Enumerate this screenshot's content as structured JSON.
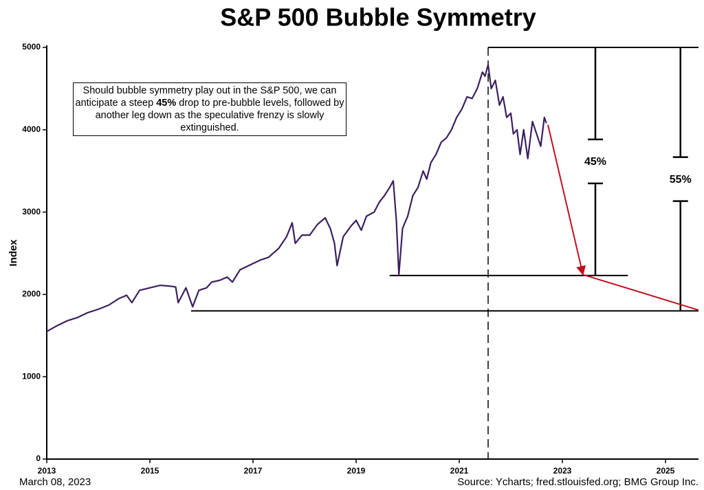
{
  "chart_data": {
    "type": "line",
    "title": "S&P 500 Bubble Symmetry",
    "y_label": "Index",
    "date_note": "March 08, 2023",
    "source": "Source: Ycharts; fred.stlouisfed.org; BMG Group Inc.",
    "color": "#3b1f5e",
    "x": [
      2013.0,
      2013.2,
      2013.4,
      2013.6,
      2013.8,
      2014.0,
      2014.2,
      2014.4,
      2014.55,
      2014.65,
      2014.8,
      2015.0,
      2015.2,
      2015.4,
      2015.5,
      2015.55,
      2015.7,
      2015.83,
      2015.95,
      2016.1,
      2016.2,
      2016.35,
      2016.5,
      2016.6,
      2016.75,
      2016.95,
      2017.15,
      2017.3,
      2017.5,
      2017.65,
      2017.76,
      2017.82,
      2017.95,
      2018.1,
      2018.25,
      2018.4,
      2018.5,
      2018.58,
      2018.63,
      2018.75,
      2018.9,
      2019.0,
      2019.1,
      2019.2,
      2019.35,
      2019.45,
      2019.55,
      2019.65,
      2019.72,
      2019.78,
      2019.83,
      2019.9,
      2020.0,
      2020.1,
      2020.2,
      2020.3,
      2020.37,
      2020.45,
      2020.55,
      2020.65,
      2020.75,
      2020.85,
      2020.95,
      2021.05,
      2021.15,
      2021.25,
      2021.35,
      2021.45,
      2021.5,
      2021.56,
      2021.62,
      2021.7,
      2021.78,
      2021.85,
      2021.92,
      2022.0,
      2022.05,
      2022.12,
      2022.18,
      2022.25,
      2022.33,
      2022.42,
      2022.5,
      2022.58,
      2022.65,
      2022.69
    ],
    "values": [
      1550,
      1620,
      1680,
      1720,
      1780,
      1820,
      1870,
      1950,
      1990,
      1900,
      2050,
      2080,
      2110,
      2100,
      2090,
      1900,
      2080,
      1850,
      2050,
      2080,
      2150,
      2170,
      2210,
      2150,
      2300,
      2360,
      2420,
      2450,
      2560,
      2700,
      2870,
      2620,
      2720,
      2720,
      2850,
      2930,
      2800,
      2620,
      2350,
      2700,
      2830,
      2900,
      2780,
      2950,
      3000,
      3120,
      3200,
      3300,
      3380,
      2900,
      2240,
      2800,
      2950,
      3200,
      3300,
      3500,
      3400,
      3600,
      3700,
      3850,
      3900,
      4000,
      4150,
      4250,
      4400,
      4380,
      4500,
      4700,
      4650,
      4790,
      4500,
      4600,
      4300,
      4400,
      4150,
      4200,
      3950,
      4000,
      3700,
      4000,
      3650,
      4100,
      3950,
      3800,
      4150,
      4080
    ],
    "xlim": [
      2013,
      2025.64
    ],
    "xticks": [
      2013,
      2015,
      2017,
      2019,
      2021,
      2023,
      2025
    ],
    "ylim": [
      0,
      5000
    ],
    "yticks": [
      0,
      1000,
      2000,
      3000,
      4000,
      5000
    ],
    "note_before": "Should bubble symmetry play out in the S&P 500, we can anticipate a steep ",
    "note_bold": "45%",
    "note_after": " drop to pre-bubble levels, followed by another leg down as the speculative frenzy is slowly extinguished.",
    "peak_x": 2021.56,
    "reference_lines": [
      {
        "y": 5000,
        "x": [
          2021.56,
          2025.64
        ]
      },
      {
        "y": 2230,
        "x": [
          2019.65,
          2024.27
        ]
      },
      {
        "y": 1800,
        "x": [
          2015.8,
          2025.64
        ]
      }
    ],
    "brackets": [
      {
        "x": 2023.64,
        "from": 5000,
        "to": 2230,
        "label": "45%"
      },
      {
        "x": 2025.29,
        "from": 5000,
        "to": 1800,
        "label": "55%"
      }
    ],
    "arrow": {
      "color": "#c0101e",
      "x": [
        2022.72,
        2023.4,
        2025.64
      ],
      "y": [
        4060,
        2240,
        1810
      ]
    }
  }
}
